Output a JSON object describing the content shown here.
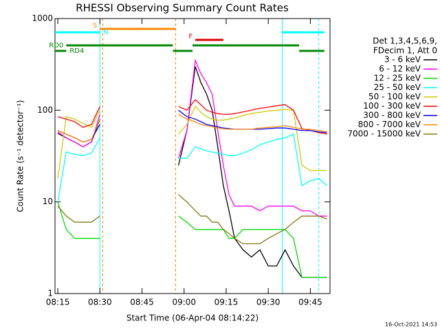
{
  "chart_data": {
    "type": "line",
    "title": "RHESSI Observing Summary Count Rates",
    "x_label": "Start Time (06-Apr-04 08:14:22)",
    "y_label": "Count Rate (s⁻¹ detector⁻¹)",
    "timestamp": "16-Oct-2021 14:53",
    "log_y": true,
    "ylim": [
      1,
      1000
    ],
    "yticks": [
      1,
      10,
      100,
      1000
    ],
    "xlim": [
      "08:14",
      "09:52"
    ],
    "xticks": [
      "08:15",
      "08:30",
      "08:45",
      "09:00",
      "09:15",
      "09:30",
      "09:45"
    ],
    "legend_header": [
      "Det 1,3,4,5,6,9,",
      "FDecim 1, Att 0"
    ],
    "x": [
      "08:15",
      "08:18",
      "08:21",
      "08:24",
      "08:27",
      "08:30",
      "08:45",
      "08:58",
      "09:01",
      "09:04",
      "09:06",
      "09:08",
      "09:10",
      "09:12",
      "09:14",
      "09:16",
      "09:18",
      "09:21",
      "09:24",
      "09:27",
      "09:30",
      "09:33",
      "09:36",
      "09:39",
      "09:42",
      "09:45",
      "09:48",
      "09:51"
    ],
    "series": [
      {
        "name": "3 - 6 keV",
        "color": "#000000",
        "values": [
          56,
          50,
          45,
          40,
          45,
          80,
          null,
          25,
          60,
          300,
          200,
          150,
          100,
          40,
          15,
          8,
          4,
          3,
          2.5,
          3,
          2,
          2,
          3,
          2,
          1.5,
          1.5,
          1.5,
          1.5
        ]
      },
      {
        "name": "6 - 12 keV",
        "color": "#ff00ff",
        "values": [
          58,
          50,
          45,
          40,
          45,
          90,
          null,
          30,
          60,
          350,
          250,
          200,
          150,
          60,
          25,
          12,
          9,
          9,
          9,
          8,
          9,
          9,
          9,
          9,
          8,
          8,
          7,
          7
        ]
      },
      {
        "name": "12 - 25 keV",
        "color": "#00dd00",
        "values": [
          10,
          5,
          4,
          4,
          4,
          4,
          null,
          7,
          6,
          5,
          5,
          5,
          5,
          5,
          5,
          4,
          4,
          5,
          5,
          5,
          5,
          5,
          5,
          4,
          1.5,
          1.5,
          1.5,
          1.5
        ]
      },
      {
        "name": "25 - 50 keV",
        "color": "#00ffff",
        "values": [
          10,
          35,
          33,
          32,
          34,
          50,
          null,
          30,
          30,
          40,
          38,
          36,
          35,
          34,
          33,
          32,
          32,
          34,
          37,
          42,
          45,
          48,
          50,
          55,
          15,
          17,
          18,
          15
        ]
      },
      {
        "name": "50 - 100 keV",
        "color": "#cccc00",
        "values": [
          18,
          85,
          80,
          72,
          65,
          100,
          null,
          55,
          70,
          110,
          95,
          85,
          80,
          78,
          78,
          80,
          82,
          88,
          92,
          95,
          98,
          100,
          102,
          100,
          25,
          22,
          22,
          22
        ]
      },
      {
        "name": "100 - 300 keV",
        "color": "#ff0000",
        "values": [
          85,
          80,
          75,
          65,
          70,
          110,
          null,
          110,
          100,
          130,
          115,
          100,
          95,
          92,
          90,
          90,
          92,
          96,
          100,
          105,
          108,
          112,
          115,
          100,
          63,
          60,
          57,
          55
        ]
      },
      {
        "name": "300 - 800 keV",
        "color": "#0000ff",
        "values": [
          60,
          55,
          50,
          45,
          48,
          70,
          null,
          100,
          85,
          80,
          75,
          70,
          68,
          66,
          64,
          63,
          62,
          62,
          62,
          62,
          63,
          64,
          64,
          62,
          60,
          60,
          58,
          57
        ]
      },
      {
        "name": "800 - 7000 keV",
        "color": "#ff8800",
        "values": [
          60,
          55,
          50,
          45,
          48,
          80,
          null,
          90,
          80,
          75,
          70,
          68,
          66,
          64,
          63,
          62,
          62,
          62,
          62,
          64,
          65,
          66,
          68,
          65,
          62,
          62,
          60,
          58
        ]
      },
      {
        "name": "7000 - 15000 keV",
        "color": "#887711",
        "values": [
          9,
          7,
          6,
          6,
          6,
          7,
          null,
          12,
          10,
          8,
          7,
          7,
          6,
          6,
          5,
          4.5,
          4,
          3.5,
          3.5,
          3.5,
          4,
          4.5,
          5,
          6,
          7,
          7,
          7,
          6.5
        ]
      }
    ],
    "flags": [
      {
        "label": "S",
        "color": "#ff8800",
        "segments": [
          [
            "08:30",
            "08:57"
          ]
        ]
      },
      {
        "label": "N",
        "color": "#00ffff",
        "segments": [
          [
            "08:14",
            "08:30"
          ],
          [
            "09:35",
            "09:50"
          ]
        ]
      },
      {
        "label": "F",
        "color": "#dd0000",
        "segments": [
          [
            "09:04",
            "09:14"
          ]
        ]
      },
      {
        "label": "RD0",
        "color": "#008800",
        "segments": [
          [
            "08:18",
            "08:56"
          ],
          [
            "09:03",
            "09:41"
          ]
        ]
      },
      {
        "label": "RD4",
        "color": "#008800",
        "segments": [
          [
            "08:14",
            "08:18"
          ],
          [
            "08:56",
            "09:03"
          ],
          [
            "09:41",
            "09:50"
          ]
        ]
      }
    ],
    "markers": [
      {
        "time": "08:14",
        "color": "#00ffff",
        "dashed": false
      },
      {
        "time": "08:30",
        "color": "#00ffff",
        "dashed": false
      },
      {
        "time": "08:31",
        "color": "#ff8800",
        "dashed": true
      },
      {
        "time": "08:57",
        "color": "#ff8800",
        "dashed": true
      },
      {
        "time": "09:35",
        "color": "#00ffff",
        "dashed": false
      },
      {
        "time": "09:48",
        "color": "#00ffff",
        "dashed": true
      }
    ]
  }
}
